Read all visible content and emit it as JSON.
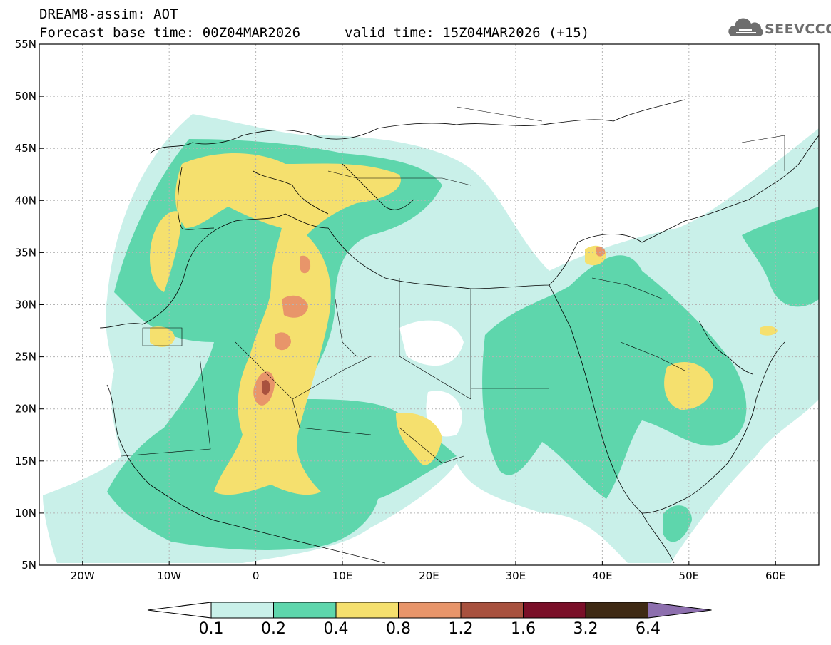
{
  "title": {
    "line1": "DREAM8-assim: AOT",
    "line2": "Forecast base time: 00Z04MAR2026",
    "valid": "valid time: 15Z04MAR2026 (+15)"
  },
  "logo": {
    "text": "SEEVCCC",
    "icon": "cloud-icon"
  },
  "axes": {
    "lat_labels": [
      "55N",
      "50N",
      "45N",
      "40N",
      "35N",
      "30N",
      "25N",
      "20N",
      "15N",
      "10N",
      "5N"
    ],
    "lon_labels": [
      "20W",
      "10W",
      "0",
      "10E",
      "20E",
      "30E",
      "40E",
      "50E",
      "60E"
    ]
  },
  "colorbar": {
    "levels": [
      "0.1",
      "0.2",
      "0.4",
      "0.8",
      "1.2",
      "1.6",
      "3.2",
      "6.4"
    ],
    "colors": [
      "#c9f0e9",
      "#5ed6ac",
      "#f5e06e",
      "#e8956a",
      "#a8513e",
      "#7a0f28",
      "#3f2a14",
      "#8d6fae"
    ]
  }
}
